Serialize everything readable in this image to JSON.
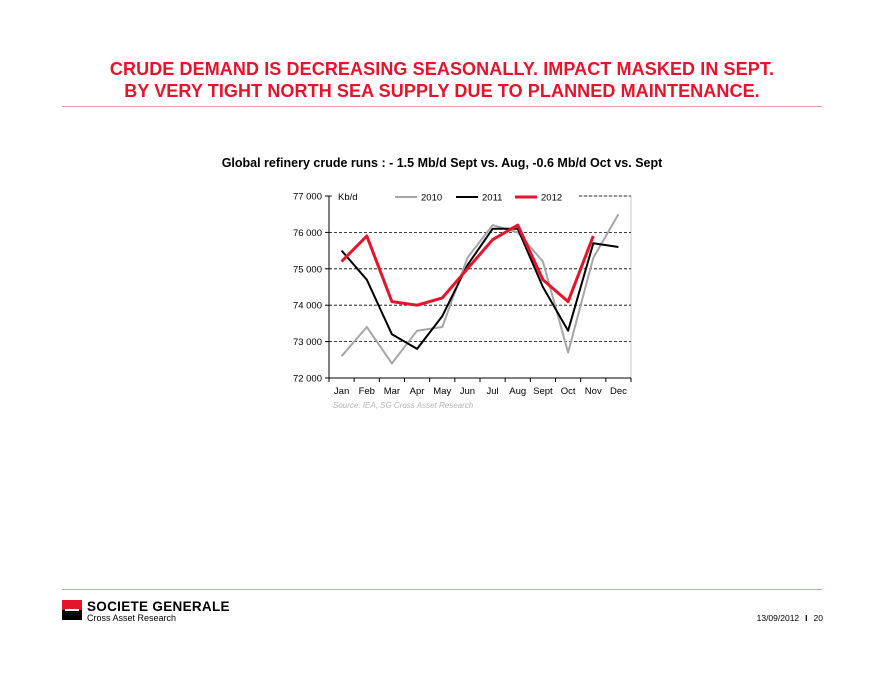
{
  "slide": {
    "title_line1": "CRUDE DEMAND IS DECREASING SEASONALLY.  IMPACT MASKED IN SEPT.",
    "title_line2": "BY VERY TIGHT NORTH SEA SUPPLY DUE TO PLANNED MAINTENANCE."
  },
  "chart_heading": "Global refinery crude runs : - 1.5 Mb/d Sept vs. Aug, -0.6 Mb/d Oct vs. Sept",
  "chart_data": {
    "type": "line",
    "unit_label": "Kb/d",
    "categories": [
      "Jan",
      "Feb",
      "Mar",
      "Apr",
      "May",
      "Jun",
      "Jul",
      "Aug",
      "Sept",
      "Oct",
      "Nov",
      "Dec"
    ],
    "ylim": [
      72000,
      77000
    ],
    "yticks": [
      72000,
      73000,
      74000,
      75000,
      76000,
      77000
    ],
    "ytick_labels": [
      "72 000",
      "73 000",
      "74 000",
      "75 000",
      "76 000",
      "77 000"
    ],
    "grid": "horizontal dashed",
    "legend_position": "top",
    "source": "Source: IEA, SG Cross Asset Research",
    "series": [
      {
        "name": "2010",
        "color": "#a6a6a6",
        "width": 2,
        "values": [
          72600,
          73400,
          72400,
          73300,
          73400,
          75300,
          76200,
          76000,
          75200,
          72700,
          75300,
          76500
        ]
      },
      {
        "name": "2011",
        "color": "#000000",
        "width": 2,
        "values": [
          75500,
          74700,
          73200,
          72800,
          73700,
          75100,
          76100,
          76100,
          74500,
          73300,
          75700,
          75600
        ]
      },
      {
        "name": "2012",
        "color": "#e4142b",
        "width": 3,
        "values": [
          75200,
          75900,
          74100,
          74000,
          74200,
          75000,
          75800,
          76200,
          74700,
          74100,
          75900,
          null
        ]
      }
    ]
  },
  "footer": {
    "company": "SOCIETE GENERALE",
    "division": "Cross Asset Research",
    "date": "13/09/2012",
    "separator": "I",
    "page": "20"
  }
}
